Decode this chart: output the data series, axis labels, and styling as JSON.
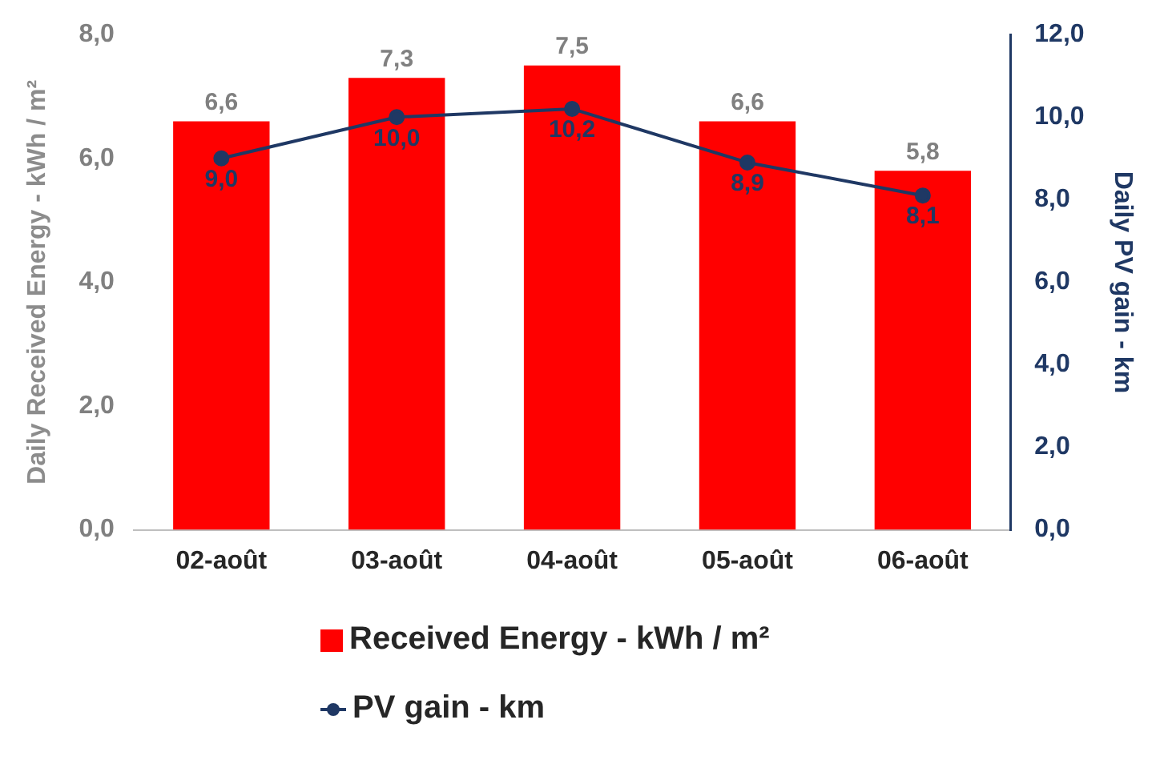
{
  "chart_data": {
    "type": "bar",
    "categories": [
      "02-août",
      "03-août",
      "04-août",
      "05-août",
      "06-août"
    ],
    "ylabel": "Daily Received Energy - kWh / m²",
    "y2label": "Daily PV gain - km",
    "ylim": [
      0,
      8
    ],
    "yticks": [
      {
        "value": 0,
        "label": "0,0"
      },
      {
        "value": 2,
        "label": "2,0"
      },
      {
        "value": 4,
        "label": "4,0"
      },
      {
        "value": 6,
        "label": "6,0"
      },
      {
        "value": 8,
        "label": "8,0"
      }
    ],
    "y2lim": [
      0,
      12
    ],
    "y2ticks": [
      {
        "value": 0,
        "label": "0,0"
      },
      {
        "value": 2,
        "label": "2,0"
      },
      {
        "value": 4,
        "label": "4,0"
      },
      {
        "value": 6,
        "label": "6,0"
      },
      {
        "value": 8,
        "label": "8,0"
      },
      {
        "value": 10,
        "label": "10,0"
      },
      {
        "value": 12,
        "label": "12,0"
      }
    ],
    "series": [
      {
        "name": "Received Energy - kWh / m²",
        "color": "#ff0000",
        "values": [
          6.6,
          7.3,
          7.5,
          6.6,
          5.8
        ],
        "value_labels": [
          "6,6",
          "7,3",
          "7,5",
          "6,6",
          "5,8"
        ]
      },
      {
        "name": "PV gain - km",
        "type": "line",
        "axis": "y2",
        "color": "#1f3864",
        "marker": "circle",
        "line_style": "solid",
        "values": [
          9.0,
          10.0,
          10.2,
          8.9,
          8.1
        ],
        "value_labels": [
          "9,0",
          "10,0",
          "10,2",
          "8,9",
          "8,1"
        ]
      }
    ],
    "grid": false,
    "legend": "bottom"
  }
}
